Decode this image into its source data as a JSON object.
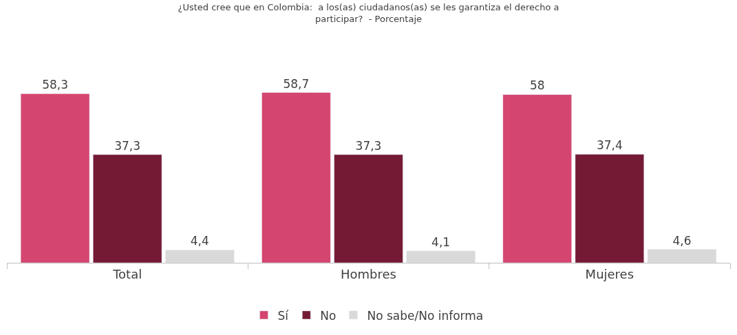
{
  "chart_data": {
    "type": "bar",
    "title": "¿Usted cree que en Colombia:  a los(as) ciudadanos(as) se les garantiza el derecho a participar?  - Porcentaje",
    "categories": [
      "Total",
      "Hombres",
      "Mujeres"
    ],
    "series": [
      {
        "name": "Sí",
        "color": "#d4456f",
        "values": [
          58.3,
          58.7,
          58
        ],
        "value_labels": [
          "58,3",
          "58,7",
          "58"
        ]
      },
      {
        "name": "No",
        "color": "#741a35",
        "values": [
          37.3,
          37.3,
          37.4
        ],
        "value_labels": [
          "37,3",
          "37,3",
          "37,4"
        ]
      },
      {
        "name": "No sabe/No informa",
        "color": "#d9d9d9",
        "values": [
          4.4,
          4.1,
          4.6
        ],
        "value_labels": [
          "4,4",
          "4,1",
          "4,6"
        ]
      }
    ],
    "legend": "bottom"
  }
}
